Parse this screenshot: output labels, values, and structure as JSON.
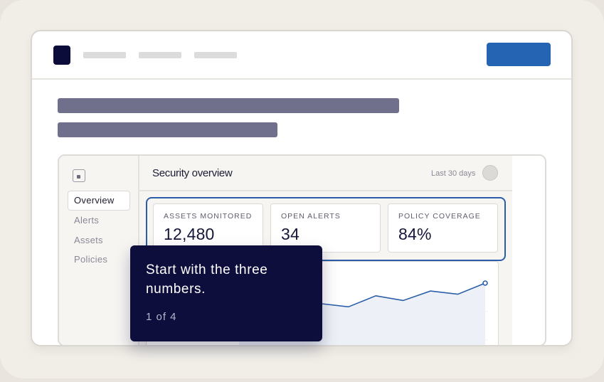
{
  "app": {
    "title": "Security overview",
    "range": "Last 30 days"
  },
  "sidebar": {
    "items": [
      {
        "label": "Overview",
        "active": true
      },
      {
        "label": "Alerts",
        "active": false
      },
      {
        "label": "Assets",
        "active": false
      },
      {
        "label": "Policies",
        "active": false
      }
    ]
  },
  "kpis": [
    {
      "label": "ASSETS MONITORED",
      "value": "12,480"
    },
    {
      "label": "OPEN ALERTS",
      "value": "34"
    },
    {
      "label": "POLICY COVERAGE",
      "value": "84%"
    }
  ],
  "tooltip": {
    "text": "Start with the three numbers.",
    "step": "1 of 4"
  },
  "trend": {
    "values": [
      30,
      34,
      40,
      45,
      43,
      50,
      47,
      53,
      51,
      58
    ]
  },
  "colors": {
    "brand": "#0e0e3d",
    "accent": "#2563b3",
    "highlight": "#2a5ea8"
  }
}
